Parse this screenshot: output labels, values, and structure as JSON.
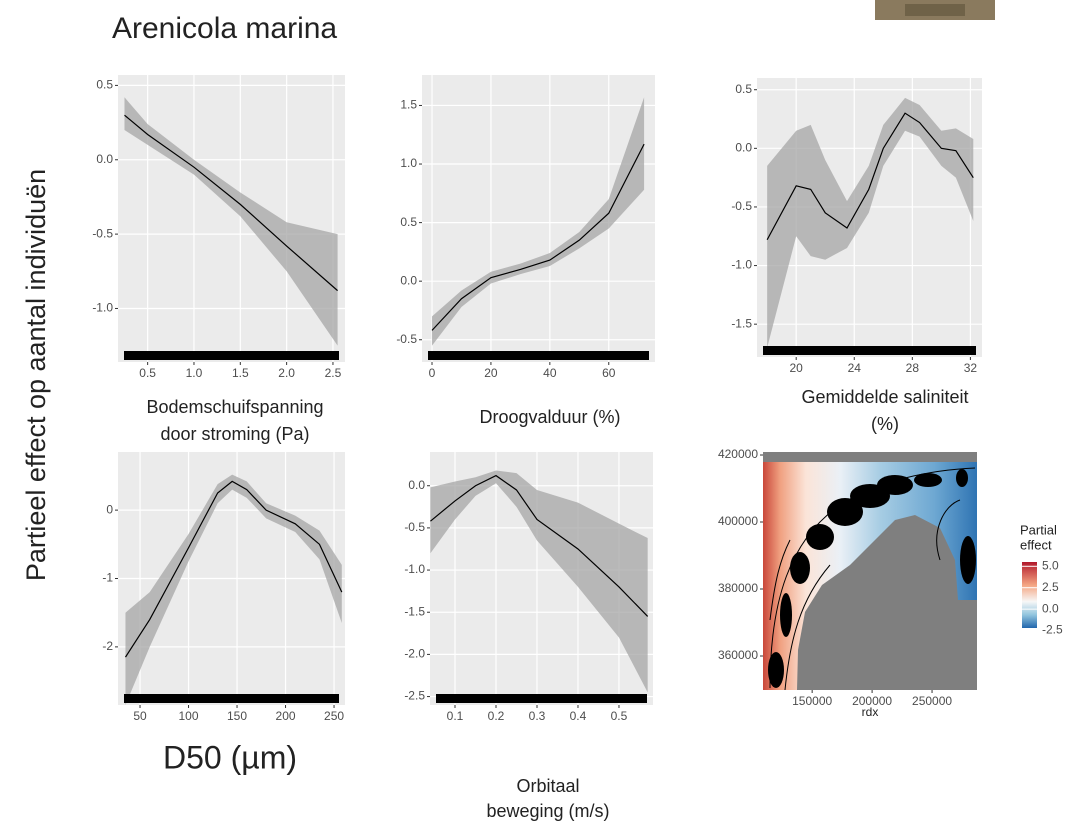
{
  "title": "Arenicola marina",
  "ylabel": "Partieel effect op aantal individuën",
  "chart_data": [
    {
      "type": "line",
      "xlabel": [
        "Bodemschuifspanning",
        "door stroming (Pa)"
      ],
      "x": [
        0.25,
        0.5,
        1.0,
        1.5,
        2.0,
        2.55
      ],
      "values": [
        0.3,
        0.17,
        -0.05,
        -0.3,
        -0.58,
        -0.88
      ],
      "lower": [
        0.2,
        0.1,
        -0.1,
        -0.38,
        -0.75,
        -1.25
      ],
      "upper": [
        0.42,
        0.24,
        0.0,
        -0.22,
        -0.42,
        -0.5
      ],
      "xlim": [
        0.18,
        2.63
      ],
      "ylim": [
        -1.36,
        0.57
      ],
      "xticks": [
        0.5,
        {
          "value": 1,
          "label": "1.0"
        },
        1.5,
        {
          "value": 2,
          "label": "2.0"
        },
        2.5
      ],
      "yticks": [
        0.5,
        {
          "value": 0,
          "label": "0.0"
        },
        -0.5,
        {
          "value": -1,
          "label": "-1.0"
        }
      ]
    },
    {
      "type": "line",
      "xlabel": [
        "Droogvalduur (%)"
      ],
      "x": [
        0,
        10,
        20,
        30,
        40,
        50,
        60,
        72
      ],
      "values": [
        -0.42,
        -0.15,
        0.03,
        0.1,
        0.18,
        0.35,
        0.58,
        1.17
      ],
      "lower": [
        -0.55,
        -0.22,
        -0.02,
        0.06,
        0.13,
        0.28,
        0.45,
        0.78
      ],
      "upper": [
        -0.3,
        -0.08,
        0.08,
        0.15,
        0.24,
        0.42,
        0.7,
        1.57
      ],
      "xlim": [
        -3.4,
        75.7
      ],
      "ylim": [
        -0.69,
        1.76
      ],
      "xticks": [
        0,
        20,
        40,
        60
      ],
      "yticks": [
        1.5,
        {
          "value": 1,
          "label": "1.0"
        },
        0.5,
        {
          "value": 0,
          "label": "0.0"
        },
        -0.5
      ]
    },
    {
      "type": "line",
      "xlabel": [
        "Gemiddelde saliniteit",
        "(%)"
      ],
      "x": [
        18,
        20,
        21,
        22,
        23.5,
        25,
        26,
        27.5,
        28.5,
        30,
        31,
        32.2
      ],
      "values": [
        -0.78,
        -0.32,
        -0.35,
        -0.55,
        -0.68,
        -0.35,
        0,
        0.3,
        0.22,
        0,
        -0.02,
        -0.25
      ],
      "lower": [
        -1.7,
        -0.75,
        -0.92,
        -0.95,
        -0.85,
        -0.55,
        -0.15,
        0.15,
        0.1,
        -0.15,
        -0.25,
        -0.62
      ],
      "upper": [
        -0.15,
        0.15,
        0.2,
        -0.1,
        -0.45,
        -0.15,
        0.2,
        0.43,
        0.37,
        0.15,
        0.17,
        0.08
      ],
      "xlim": [
        17.3,
        32.8
      ],
      "ylim": [
        -1.78,
        0.6
      ],
      "xticks": [
        20,
        24,
        28,
        32
      ],
      "yticks": [
        0.5,
        {
          "value": 0,
          "label": "0.0"
        },
        -0.5,
        {
          "value": -1,
          "label": "-1.0"
        },
        -1.5
      ]
    },
    {
      "type": "line",
      "xlabel": [
        "D50 (µm)"
      ],
      "x": [
        35,
        60,
        100,
        130,
        145,
        160,
        180,
        210,
        235,
        258
      ],
      "values": [
        -2.15,
        -1.6,
        -0.55,
        0.25,
        0.42,
        0.3,
        0.0,
        -0.2,
        -0.5,
        -1.2
      ],
      "lower": [
        -2.85,
        -2.0,
        -0.75,
        0.1,
        0.3,
        0.18,
        -0.12,
        -0.32,
        -0.72,
        -1.65
      ],
      "upper": [
        -1.5,
        -1.2,
        -0.35,
        0.38,
        0.52,
        0.42,
        0.1,
        -0.08,
        -0.3,
        -0.8
      ],
      "xlim": [
        27.3,
        261.3
      ],
      "ylim": [
        -2.85,
        0.85
      ],
      "xticks": [
        50,
        100,
        150,
        200,
        250
      ],
      "yticks": [
        0,
        -1,
        -2
      ]
    },
    {
      "type": "line",
      "xlabel": [
        "Orbitaal",
        "beweging (m/s)"
      ],
      "x": [
        0.04,
        0.1,
        0.15,
        0.2,
        0.25,
        0.3,
        0.4,
        0.5,
        0.57
      ],
      "values": [
        -0.42,
        -0.18,
        0.0,
        0.12,
        -0.05,
        -0.4,
        -0.75,
        -1.2,
        -1.55
      ],
      "lower": [
        -0.8,
        -0.4,
        -0.12,
        0.03,
        -0.25,
        -0.65,
        -1.2,
        -1.8,
        -2.45
      ],
      "upper": [
        -0.02,
        0.05,
        0.1,
        0.18,
        0.15,
        -0.05,
        -0.2,
        -0.45,
        -0.62
      ],
      "xlim": [
        0.039,
        0.583
      ],
      "ylim": [
        -2.6,
        0.4
      ],
      "xticks": [
        0.1,
        0.2,
        0.3,
        0.4,
        0.5
      ],
      "yticks": [
        {
          "value": 0,
          "label": "0.0"
        },
        -0.5,
        {
          "value": -1,
          "label": "-1.0"
        },
        -1.5,
        {
          "value": -2,
          "label": "-2.0"
        },
        -2.5
      ]
    },
    {
      "type": "map",
      "xlabel": [
        "rdx"
      ],
      "xlim": [
        109000,
        287500
      ],
      "ylim": [
        349850,
        420900
      ],
      "xticks": [
        150000,
        200000,
        250000
      ],
      "yticks": [
        420000,
        400000,
        380000,
        360000
      ],
      "legend_title": [
        "Partial",
        "effect"
      ],
      "colorbar_lim": [
        -2.2,
        5.5
      ],
      "colorbar_ticks": [
        {
          "value": 5,
          "label": "5.0"
        },
        2.5,
        {
          "value": 0,
          "label": "0.0"
        },
        -2.5
      ]
    }
  ]
}
